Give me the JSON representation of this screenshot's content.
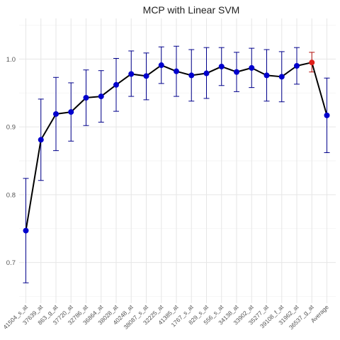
{
  "chart_data": {
    "type": "line",
    "title": "MCP with Linear SVM",
    "xlabel": "",
    "ylabel": "",
    "ylim": [
      0.64,
      1.06
    ],
    "yticks": [
      0.7,
      0.8,
      0.9,
      1.0
    ],
    "ytick_labels": [
      "0.7",
      "0.8",
      "0.9",
      "1.0"
    ],
    "grid": true,
    "legend": "none",
    "categories": [
      "41504_s_at",
      "37639_at",
      "863_g_at",
      "37720_at",
      "32786_at",
      "36864_at",
      "38028_at",
      "40248_at",
      "38087_s_at",
      "32225_at",
      "41385_at",
      "1767_s_at",
      "829_s_at",
      "556_s_at",
      "34138_at",
      "33902_at",
      "35277_at",
      "39108_f_at",
      "31962_at",
      "36537_g_at",
      "Average"
    ],
    "series": [
      {
        "values": [
          0.747,
          0.881,
          0.919,
          0.922,
          0.943,
          0.945,
          0.962,
          0.978,
          0.975,
          0.991,
          0.982,
          0.976,
          0.979,
          0.989,
          0.981,
          0.987,
          0.976,
          0.974,
          0.99,
          0.995,
          0.917
        ],
        "lower": [
          0.67,
          0.821,
          0.865,
          0.879,
          0.902,
          0.907,
          0.923,
          0.945,
          0.94,
          0.964,
          0.945,
          0.938,
          0.942,
          0.961,
          0.952,
          0.958,
          0.938,
          0.937,
          0.963,
          0.981,
          0.862
        ],
        "upper": [
          0.824,
          0.941,
          0.973,
          0.965,
          0.984,
          0.983,
          1.001,
          1.012,
          1.009,
          1.018,
          1.019,
          1.014,
          1.017,
          1.017,
          1.01,
          1.016,
          1.014,
          1.011,
          1.017,
          1.01,
          0.972
        ],
        "highlight_index": 19
      }
    ],
    "colors": {
      "line": "#000000",
      "point": "#0000cd",
      "error_bar": "#00008b",
      "highlight_point": "#e0201b",
      "highlight_error_bar": "#b3100c",
      "grid_major": "#e6e6e6",
      "grid_minor": "#f2f2f2",
      "tick_text": "#555555",
      "title_text": "#222222"
    }
  }
}
